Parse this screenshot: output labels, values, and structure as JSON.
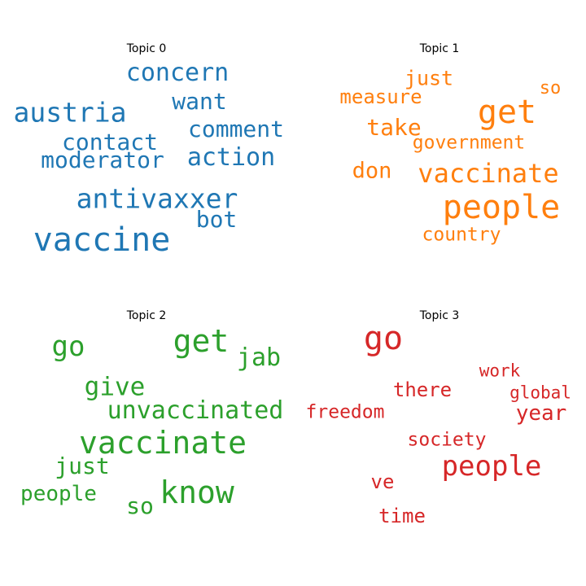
{
  "chart_data": {
    "type": "wordcloud",
    "panels": [
      {
        "title": "Topic 0",
        "color": "#1f77b4",
        "words": [
          {
            "text": "vaccine",
            "weight": 1.0
          },
          {
            "text": "antivaxxer",
            "weight": 0.85
          },
          {
            "text": "austria",
            "weight": 0.8
          },
          {
            "text": "concern",
            "weight": 0.75
          },
          {
            "text": "action",
            "weight": 0.7
          },
          {
            "text": "contact",
            "weight": 0.68
          },
          {
            "text": "comment",
            "weight": 0.65
          },
          {
            "text": "moderator",
            "weight": 0.65
          },
          {
            "text": "want",
            "weight": 0.65
          },
          {
            "text": "bot",
            "weight": 0.65
          }
        ]
      },
      {
        "title": "Topic 1",
        "color": "#ff7f0e",
        "words": [
          {
            "text": "people",
            "weight": 1.0
          },
          {
            "text": "get",
            "weight": 0.95
          },
          {
            "text": "vaccinate",
            "weight": 0.78
          },
          {
            "text": "take",
            "weight": 0.65
          },
          {
            "text": "don",
            "weight": 0.62
          },
          {
            "text": "just",
            "weight": 0.6
          },
          {
            "text": "measure",
            "weight": 0.55
          },
          {
            "text": "government",
            "weight": 0.53
          },
          {
            "text": "country",
            "weight": 0.53
          },
          {
            "text": "so",
            "weight": 0.5
          }
        ]
      },
      {
        "title": "Topic 2",
        "color": "#2ca02c",
        "words": [
          {
            "text": "vaccinate",
            "weight": 1.0
          },
          {
            "text": "get",
            "weight": 0.97
          },
          {
            "text": "know",
            "weight": 0.95
          },
          {
            "text": "unvaccinated",
            "weight": 0.78
          },
          {
            "text": "go",
            "weight": 0.8
          },
          {
            "text": "give",
            "weight": 0.77
          },
          {
            "text": "jab",
            "weight": 0.72
          },
          {
            "text": "just",
            "weight": 0.7
          },
          {
            "text": "people",
            "weight": 0.65
          },
          {
            "text": "so",
            "weight": 0.65
          }
        ]
      },
      {
        "title": "Topic 3",
        "color": "#d62728",
        "words": [
          {
            "text": "go",
            "weight": 1.0
          },
          {
            "text": "people",
            "weight": 0.85
          },
          {
            "text": "year",
            "weight": 0.65
          },
          {
            "text": "there",
            "weight": 0.6
          },
          {
            "text": "freedom",
            "weight": 0.58
          },
          {
            "text": "society",
            "weight": 0.58
          },
          {
            "text": "ve",
            "weight": 0.58
          },
          {
            "text": "time",
            "weight": 0.58
          },
          {
            "text": "work",
            "weight": 0.52
          },
          {
            "text": "global",
            "weight": 0.52
          }
        ]
      }
    ]
  }
}
